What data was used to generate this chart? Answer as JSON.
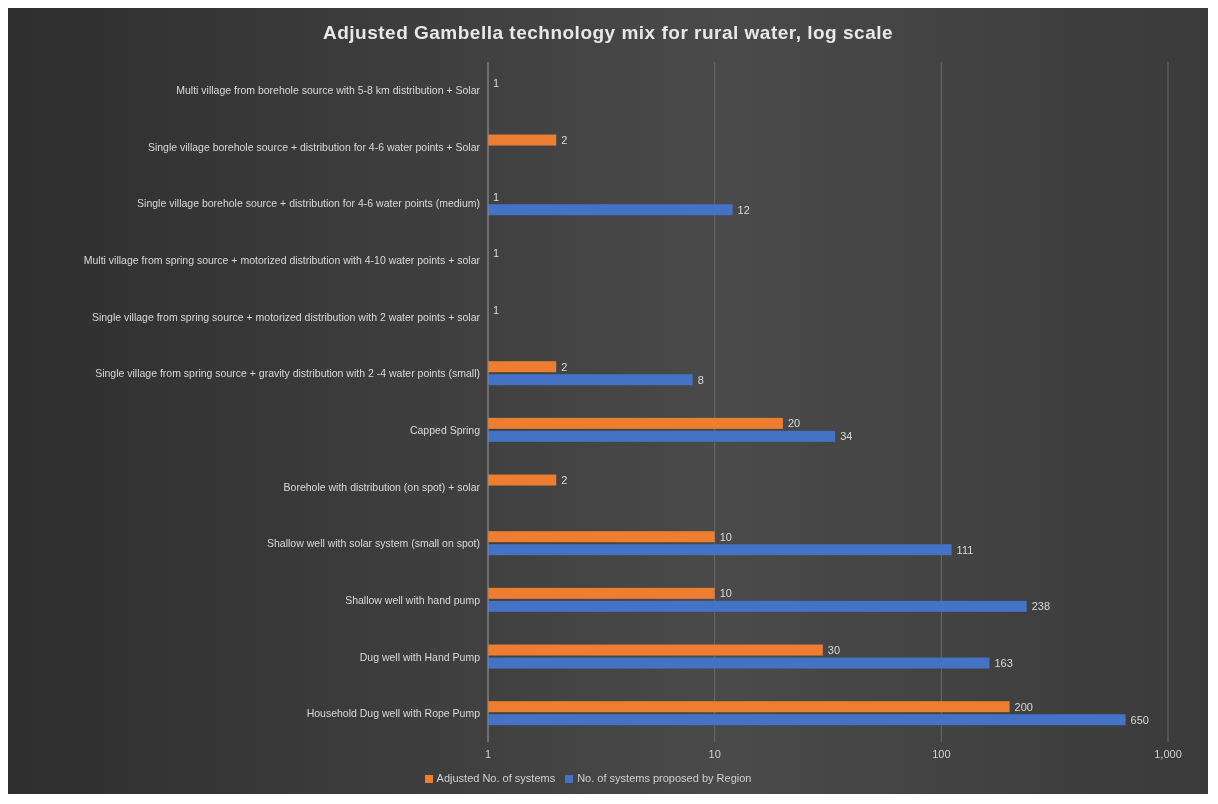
{
  "chart_data": {
    "type": "bar",
    "orientation": "horizontal",
    "title": "Adjusted Gambella technology mix for rural water, log scale",
    "categories": [
      "Multi village from borehole source with 5-8 km distribution + Solar",
      "Single village borehole source + distribution for 4-6 water points + Solar",
      "Single village borehole source + distribution for  4-6 water points (medium)",
      "Multi village from spring source + motorized distribution with 4-10 water points + solar",
      "Single village from spring source + motorized distribution with 2 water points + solar",
      "Single village from spring source + gravity distribution with 2 -4 water points (small)",
      "Capped Spring",
      "Borehole with distribution (on spot) + solar",
      "Shallow well with solar system (small on spot)",
      "Shallow well with hand pump",
      "Dug well with Hand Pump",
      "Household Dug well with Rope Pump"
    ],
    "series": [
      {
        "name": "Adjusted No. of systems",
        "color": "#ed7d31",
        "values": [
          1,
          2,
          1,
          1,
          1,
          2,
          20,
          2,
          10,
          10,
          30,
          200
        ]
      },
      {
        "name": "No. of systems proposed by Region",
        "color": "#4472c4",
        "values": [
          null,
          null,
          12,
          null,
          null,
          8,
          34,
          null,
          111,
          238,
          163,
          650
        ]
      }
    ],
    "log": "x",
    "xlim": [
      1,
      1000
    ],
    "xticks": [
      1,
      10,
      100,
      {
        "value": 1000,
        "label": "1,000"
      }
    ],
    "grid": "x",
    "legend": "bottom",
    "data_labels": true
  }
}
